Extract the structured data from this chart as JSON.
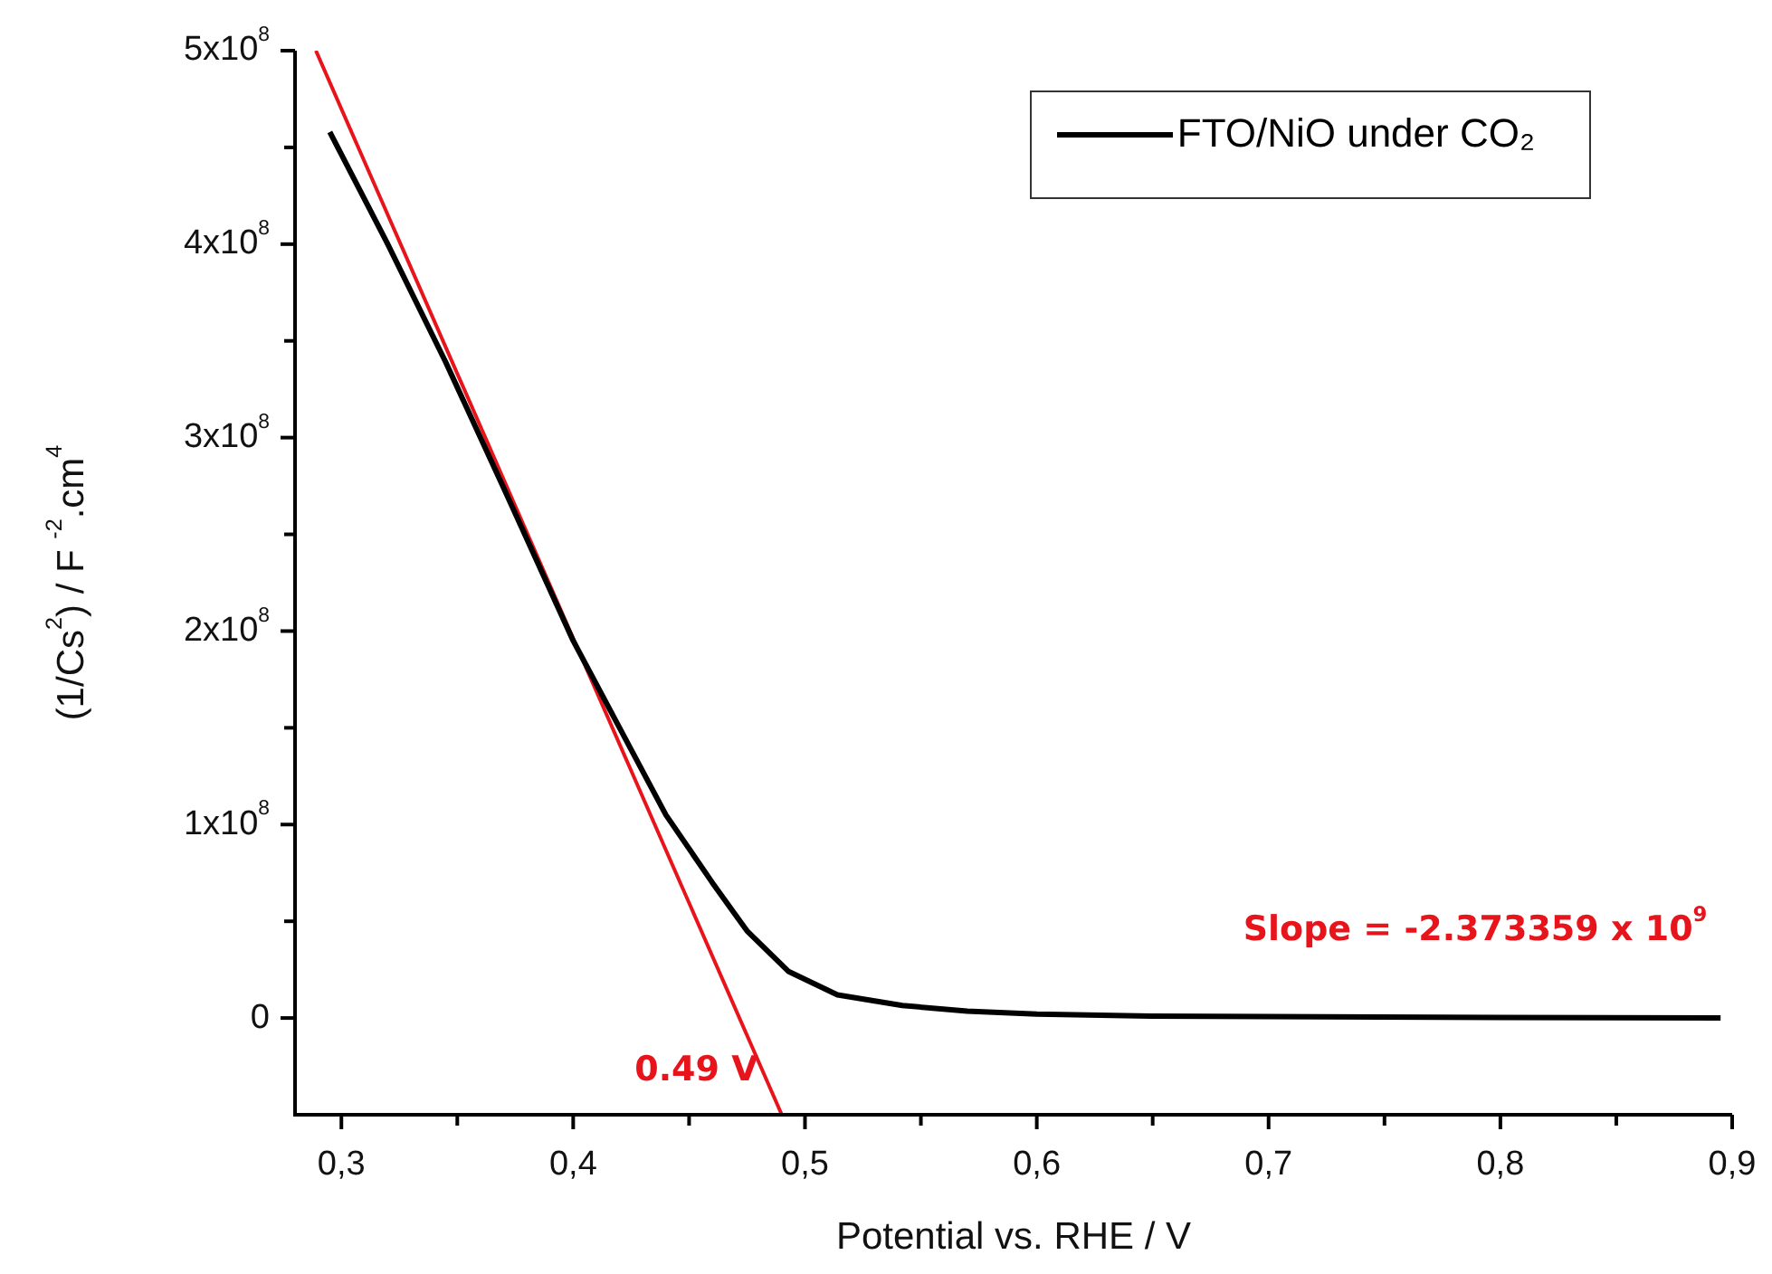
{
  "chart_data": {
    "type": "line",
    "xlabel": "Potential vs. RHE / V",
    "ylabel": "(1/Cs$^{2}$) / F $^{-2}$.cm$^{4}$",
    "xlim": [
      0.28,
      0.9
    ],
    "ylim": [
      -50000000,
      500000000
    ],
    "xticks": [
      {
        "value": 0.3,
        "label": "0,3"
      },
      {
        "value": 0.35,
        "label": null
      },
      {
        "value": 0.4,
        "label": "0,4"
      },
      {
        "value": 0.45,
        "label": null
      },
      {
        "value": 0.5,
        "label": "0,5"
      },
      {
        "value": 0.55,
        "label": null
      },
      {
        "value": 0.6,
        "label": "0,6"
      },
      {
        "value": 0.65,
        "label": null
      },
      {
        "value": 0.7,
        "label": "0,7"
      },
      {
        "value": 0.75,
        "label": null
      },
      {
        "value": 0.8,
        "label": "0,8"
      },
      {
        "value": 0.85,
        "label": null
      },
      {
        "value": 0.9,
        "label": "0,9"
      }
    ],
    "yticks": [
      {
        "value": 0,
        "label": "0"
      },
      {
        "value": 50000000,
        "label": null
      },
      {
        "value": 100000000,
        "label": "1x10$^{8}$"
      },
      {
        "value": 150000000,
        "label": null
      },
      {
        "value": 200000000,
        "label": "2x10$^{8}$"
      },
      {
        "value": 250000000,
        "label": null
      },
      {
        "value": 300000000,
        "label": "3x10$^{8}$"
      },
      {
        "value": 350000000,
        "label": null
      },
      {
        "value": 400000000,
        "label": "4x10$^{8}$"
      },
      {
        "value": 450000000,
        "label": null
      },
      {
        "value": 500000000,
        "label": "5x10$^{8}$"
      }
    ],
    "grid": false,
    "legend": "top right",
    "marker": "none",
    "line_style": "solid",
    "series": [
      {
        "name": "FTO/NiO under CO₂",
        "color": "#000000",
        "x": [
          0.295,
          0.32,
          0.345,
          0.37,
          0.4,
          0.42,
          0.44,
          0.46,
          0.475,
          0.493,
          0.514,
          0.542,
          0.57,
          0.6,
          0.65,
          0.7,
          0.8,
          0.895
        ],
        "values": [
          458000000,
          400000000,
          339000000,
          274000000,
          195000000,
          150000000,
          105000000,
          70000000,
          45000000,
          24000000,
          12000000,
          6500000,
          3500000,
          2000000,
          1000000,
          700000,
          300000,
          0
        ]
      },
      {
        "type": "line",
        "color": "#e8141c",
        "x": [
          0.289,
          0.49
        ],
        "values": [
          500000000,
          -50000000
        ]
      }
    ],
    "annotations": [
      {
        "text": "0.49 V",
        "x": 0.49,
        "y": -50000000
      },
      "Slope = -2.373359 x 10$^{9}$"
    ]
  }
}
